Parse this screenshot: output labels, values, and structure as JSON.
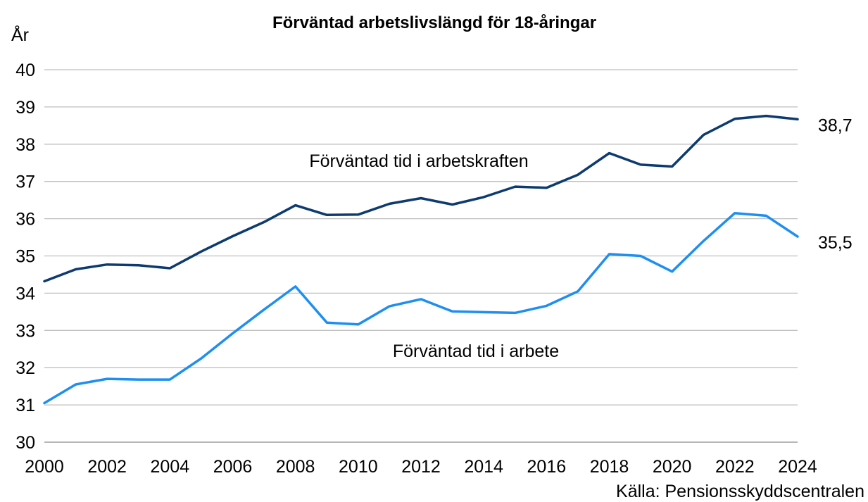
{
  "chart_data": {
    "type": "line",
    "title": "Förväntad arbetslivslängd för 18-åringar",
    "ylabel": "År",
    "xlabel": "",
    "ylim": [
      30,
      40
    ],
    "yticks": [
      "30",
      "31",
      "32",
      "33",
      "34",
      "35",
      "36",
      "37",
      "38",
      "39",
      "40"
    ],
    "xlim": [
      2000,
      2024
    ],
    "xticks": [
      "2000",
      "2002",
      "2004",
      "2006",
      "2008",
      "2010",
      "2012",
      "2014",
      "2016",
      "2018",
      "2020",
      "2022",
      "2024"
    ],
    "grid": "horizontal",
    "source": "Källa: Pensionsskyddscentralen",
    "x": [
      2000,
      2001,
      2002,
      2003,
      2004,
      2005,
      2006,
      2007,
      2008,
      2009,
      2010,
      2011,
      2012,
      2013,
      2014,
      2015,
      2016,
      2017,
      2018,
      2019,
      2020,
      2021,
      2022,
      2023,
      2024
    ],
    "series": [
      {
        "name": "Förväntad tid i arbetskraften",
        "color": "#0d3b70",
        "end_label": "38,7",
        "values": [
          34.32,
          34.64,
          34.77,
          34.75,
          34.67,
          35.12,
          35.53,
          35.91,
          36.36,
          36.1,
          36.11,
          36.4,
          36.55,
          36.38,
          36.58,
          36.86,
          36.83,
          37.18,
          37.76,
          37.45,
          37.4,
          38.25,
          38.68,
          38.76,
          38.67
        ]
      },
      {
        "name": "Förväntad tid i arbete",
        "color": "#1e8ff0",
        "end_label": "35,5",
        "values": [
          31.05,
          31.55,
          31.7,
          31.68,
          31.68,
          32.25,
          32.92,
          33.56,
          34.18,
          33.21,
          33.16,
          33.65,
          33.84,
          33.51,
          33.49,
          33.47,
          33.66,
          34.05,
          35.05,
          35.0,
          34.58,
          35.4,
          36.15,
          36.08,
          35.52
        ]
      }
    ]
  }
}
